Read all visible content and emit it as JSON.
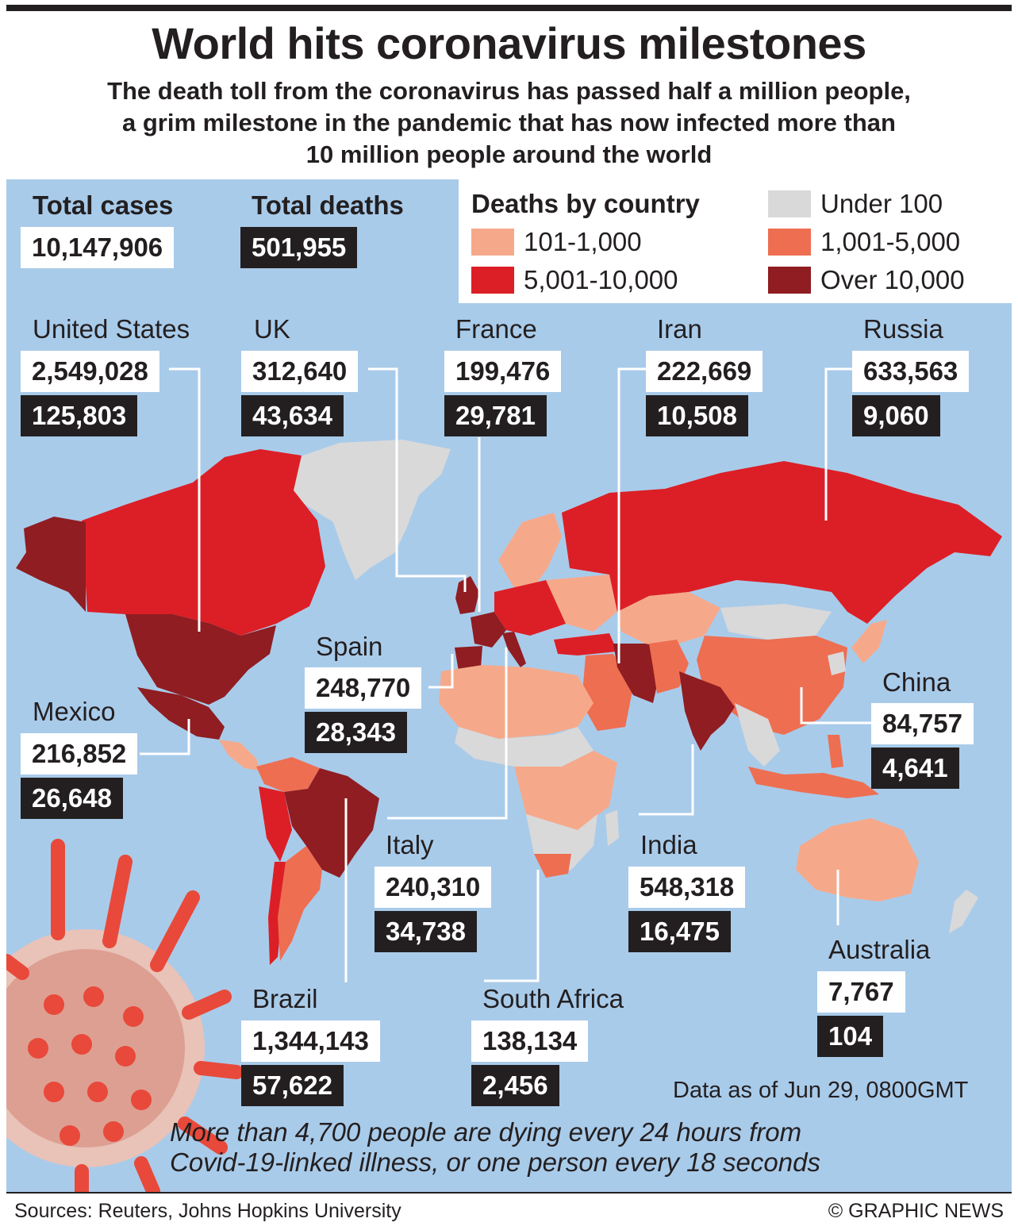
{
  "title": "World hits coronavirus milestones",
  "subtitle": [
    "The death toll from the coronavirus has passed half a million people,",
    "a grim milestone in the pandemic that has now infected more than",
    "10 million people around the world"
  ],
  "totals": {
    "cases_label": "Total cases",
    "cases": "10,147,906",
    "deaths_label": "Total deaths",
    "deaths": "501,955"
  },
  "legend": {
    "title": "Deaths by country",
    "items": [
      {
        "label": "Under 100",
        "color": "#d9d9da"
      },
      {
        "label": "101-1,000",
        "color": "#f6a98a"
      },
      {
        "label": "1,001-5,000",
        "color": "#ee6e52"
      },
      {
        "label": "5,001-10,000",
        "color": "#dc1f26"
      },
      {
        "label": "Over 10,000",
        "color": "#8f1d22"
      }
    ]
  },
  "countries": {
    "united_states": {
      "name": "United States",
      "cases": "2,549,028",
      "deaths": "125,803"
    },
    "uk": {
      "name": "UK",
      "cases": "312,640",
      "deaths": "43,634"
    },
    "france": {
      "name": "France",
      "cases": "199,476",
      "deaths": "29,781"
    },
    "iran": {
      "name": "Iran",
      "cases": "222,669",
      "deaths": "10,508"
    },
    "russia": {
      "name": "Russia",
      "cases": "633,563",
      "deaths": "9,060"
    },
    "spain": {
      "name": "Spain",
      "cases": "248,770",
      "deaths": "28,343"
    },
    "mexico": {
      "name": "Mexico",
      "cases": "216,852",
      "deaths": "26,648"
    },
    "china": {
      "name": "China",
      "cases": "84,757",
      "deaths": "4,641"
    },
    "italy": {
      "name": "Italy",
      "cases": "240,310",
      "deaths": "34,738"
    },
    "india": {
      "name": "India",
      "cases": "548,318",
      "deaths": "16,475"
    },
    "brazil": {
      "name": "Brazil",
      "cases": "1,344,143",
      "deaths": "57,622"
    },
    "south_africa": {
      "name": "South Africa",
      "cases": "138,134",
      "deaths": "2,456"
    },
    "australia": {
      "name": "Australia",
      "cases": "7,767",
      "deaths": "104"
    }
  },
  "as_of": "Data as of Jun 29, 0800GMT",
  "note": [
    "More than 4,700 people are dying every 24 hours from",
    "Covid-19-linked illness, or one person every 18 seconds"
  ],
  "sources": "Sources: Reuters, Johns Hopkins University",
  "credit": "© GRAPHIC NEWS",
  "colors": {
    "ocean": "#a9cbea",
    "box_dark": "#231f20",
    "virus": "#e8493a"
  }
}
